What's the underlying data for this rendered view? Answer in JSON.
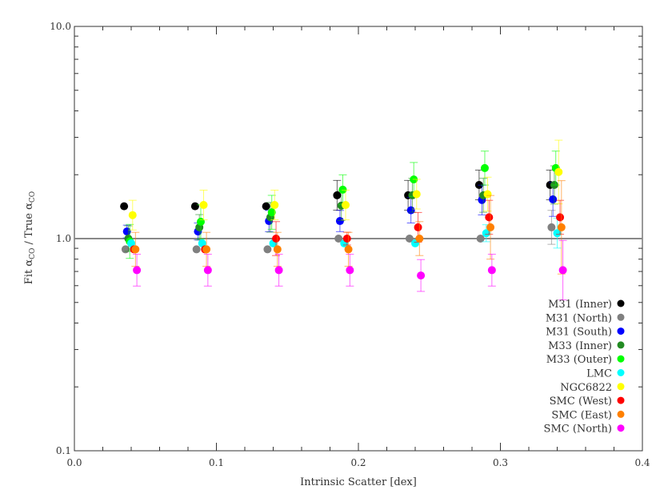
{
  "chart_data": {
    "type": "scatter",
    "title": "",
    "xlabel": "Intrinsic Scatter [dex]",
    "ylabel_parts": [
      "Fit ",
      "α",
      "CO",
      " / True ",
      "α",
      "CO"
    ],
    "xlim": [
      0.0,
      0.4
    ],
    "ylim": [
      0.1,
      10.0
    ],
    "yscale": "log",
    "x_ticks": [
      "0.0",
      "0.1",
      "0.2",
      "0.3",
      "0.4"
    ],
    "y_ticks": [
      "0.1",
      "1.0",
      "10.0"
    ],
    "reference_line": 1.0,
    "reference_line_color": "#888888",
    "grid": false,
    "legend_placement": "bottom-right",
    "scatter_groups": [
      0.035,
      0.085,
      0.135,
      0.185,
      0.235,
      0.285,
      0.335
    ],
    "series": [
      {
        "name": "M31 (Inner)",
        "color": "#000000",
        "x_offset": 0.0,
        "values": [
          1.42,
          1.42,
          1.42,
          1.6,
          1.6,
          1.79,
          1.79
        ],
        "err_dex": [
          0,
          0,
          0,
          0.07,
          0.07,
          0.07,
          0.07
        ]
      },
      {
        "name": "M31 (North)",
        "color": "#808080",
        "x_offset": 0.001,
        "values": [
          0.89,
          0.89,
          0.89,
          1.0,
          1.0,
          1.0,
          1.13
        ],
        "err_dex": [
          0,
          0,
          0,
          0,
          0,
          0,
          0.08
        ]
      },
      {
        "name": "M31 (South)",
        "color": "#0000ff",
        "x_offset": 0.002,
        "values": [
          1.08,
          1.08,
          1.21,
          1.21,
          1.36,
          1.52,
          1.53
        ],
        "err_dex": [
          0.03,
          0.04,
          0.05,
          0.05,
          0.06,
          0.07,
          0.08
        ]
      },
      {
        "name": "M33 (Inner)",
        "color": "#228b22",
        "x_offset": 0.003,
        "values": [
          1.0,
          1.13,
          1.26,
          1.43,
          1.6,
          1.6,
          1.79
        ],
        "err_dex": [
          0.06,
          0.06,
          0.07,
          0.07,
          0.08,
          0.08,
          0.09
        ]
      },
      {
        "name": "M33 (Outer)",
        "color": "#00ff00",
        "x_offset": 0.004,
        "values": [
          0.97,
          1.2,
          1.33,
          1.7,
          1.9,
          2.15,
          2.15
        ],
        "err_dex": [
          0.08,
          0.08,
          0.08,
          0.07,
          0.08,
          0.08,
          0.08
        ]
      },
      {
        "name": "LMC",
        "color": "#00ffff",
        "x_offset": 0.005,
        "values": [
          0.95,
          0.95,
          0.95,
          0.95,
          0.95,
          1.06,
          1.06
        ],
        "err_dex": [
          0,
          0,
          0,
          0,
          0,
          0.04,
          0.07
        ]
      },
      {
        "name": "NGC6822",
        "color": "#ffff00",
        "x_offset": 0.006,
        "values": [
          1.29,
          1.44,
          1.44,
          1.44,
          1.62,
          1.62,
          2.06
        ],
        "err_dex": [
          0.07,
          0.07,
          0.07,
          0.07,
          0.07,
          0.08,
          0.15
        ]
      },
      {
        "name": "SMC (West)",
        "color": "#ff0000",
        "x_offset": 0.007,
        "values": [
          0.89,
          0.89,
          1.0,
          1.0,
          1.13,
          1.26,
          1.26
        ],
        "err_dex": [
          0,
          0,
          0.08,
          0.03,
          0.07,
          0.08,
          0.08
        ]
      },
      {
        "name": "SMC (East)",
        "color": "#ff8000",
        "x_offset": 0.008,
        "values": [
          0.89,
          0.89,
          0.89,
          0.89,
          1.0,
          1.13,
          1.13
        ],
        "err_dex": [
          0.08,
          0.08,
          0.08,
          0.08,
          0.08,
          0.15,
          0.22
        ]
      },
      {
        "name": "SMC (North)",
        "color": "#ff00ff",
        "x_offset": 0.009,
        "values": [
          0.71,
          0.71,
          0.71,
          0.71,
          0.67,
          0.71,
          0.71
        ],
        "err_dex": [
          0.075,
          0.075,
          0.075,
          0.075,
          0.075,
          0.075,
          0.14
        ]
      }
    ]
  }
}
